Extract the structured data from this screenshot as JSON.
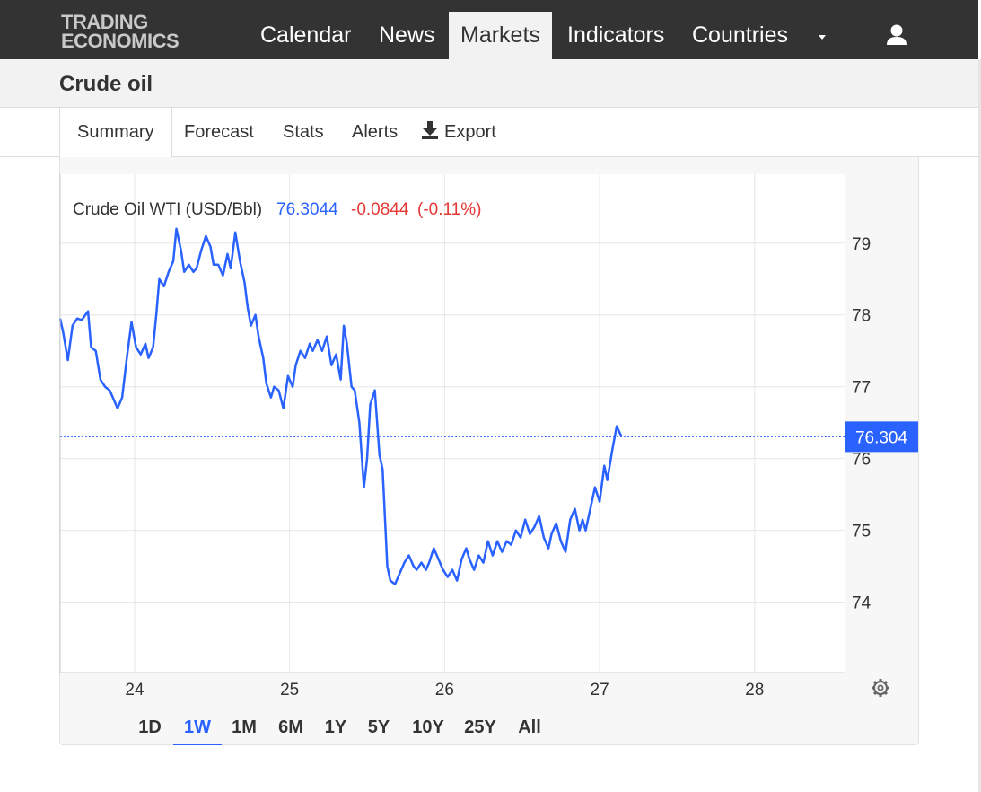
{
  "nav": {
    "logo_line1": "TRADING",
    "logo_line2": "ECONOMICS",
    "items": [
      {
        "label": "Calendar",
        "active": false
      },
      {
        "label": "News",
        "active": false
      },
      {
        "label": "Markets",
        "active": true
      },
      {
        "label": "Indicators",
        "active": false
      },
      {
        "label": "Countries",
        "active": false
      }
    ],
    "dropdown_icon": "caret-down-icon",
    "user_icon": "user-icon"
  },
  "page": {
    "title": "Crude oil"
  },
  "tabs": [
    {
      "label": "Summary",
      "active": true
    },
    {
      "label": "Forecast",
      "active": false
    },
    {
      "label": "Stats",
      "active": false
    },
    {
      "label": "Alerts",
      "active": false
    },
    {
      "label": "Export",
      "active": false,
      "icon": "download-icon"
    }
  ],
  "chart_data": {
    "type": "line",
    "legend": {
      "name": "Crude Oil WTI (USD/Bbl)",
      "value": "76.3044",
      "change": "-0.0844",
      "change_pct": "(-0.11%)"
    },
    "last_value_label": "76.304",
    "last_value": 76.304,
    "x_ticks": [
      "24",
      "25",
      "26",
      "27",
      "28"
    ],
    "y_ticks": [
      "74",
      "75",
      "76",
      "77",
      "78",
      "79"
    ],
    "ylim": [
      73.02,
      79.96
    ],
    "xlim": [
      23.52,
      28.58
    ],
    "grid": true,
    "colors": {
      "line": "#2962ff",
      "positive": "#2962ff",
      "negative": "#e53935",
      "grid": "#e6e6e6"
    },
    "series": [
      {
        "values": [
          [
            23.52,
            77.95
          ],
          [
            23.54,
            77.75
          ],
          [
            23.57,
            77.37
          ],
          [
            23.6,
            77.85
          ],
          [
            23.63,
            77.95
          ],
          [
            23.66,
            77.93
          ],
          [
            23.7,
            78.05
          ],
          [
            23.72,
            77.55
          ],
          [
            23.75,
            77.5
          ],
          [
            23.78,
            77.1
          ],
          [
            23.81,
            77.0
          ],
          [
            23.84,
            76.95
          ],
          [
            23.87,
            76.8
          ],
          [
            23.89,
            76.7
          ],
          [
            23.92,
            76.85
          ],
          [
            23.95,
            77.4
          ],
          [
            23.98,
            77.9
          ],
          [
            24.01,
            77.55
          ],
          [
            24.04,
            77.45
          ],
          [
            24.07,
            77.6
          ],
          [
            24.09,
            77.4
          ],
          [
            24.12,
            77.55
          ],
          [
            24.14,
            78.0
          ],
          [
            24.16,
            78.5
          ],
          [
            24.19,
            78.4
          ],
          [
            24.22,
            78.6
          ],
          [
            24.25,
            78.75
          ],
          [
            24.27,
            79.2
          ],
          [
            24.3,
            78.9
          ],
          [
            24.32,
            78.6
          ],
          [
            24.35,
            78.7
          ],
          [
            24.38,
            78.6
          ],
          [
            24.4,
            78.65
          ],
          [
            24.43,
            78.9
          ],
          [
            24.46,
            79.1
          ],
          [
            24.49,
            78.95
          ],
          [
            24.51,
            78.7
          ],
          [
            24.54,
            78.7
          ],
          [
            24.57,
            78.55
          ],
          [
            24.6,
            78.85
          ],
          [
            24.62,
            78.65
          ],
          [
            24.65,
            79.15
          ],
          [
            24.68,
            78.75
          ],
          [
            24.71,
            78.45
          ],
          [
            24.73,
            78.1
          ],
          [
            24.75,
            77.85
          ],
          [
            24.78,
            78.0
          ],
          [
            24.8,
            77.7
          ],
          [
            24.83,
            77.4
          ],
          [
            24.85,
            77.05
          ],
          [
            24.88,
            76.85
          ],
          [
            24.9,
            77.0
          ],
          [
            24.93,
            76.95
          ],
          [
            24.96,
            76.7
          ],
          [
            24.99,
            77.15
          ],
          [
            25.02,
            77.0
          ],
          [
            25.04,
            77.3
          ],
          [
            25.07,
            77.5
          ],
          [
            25.1,
            77.4
          ],
          [
            25.13,
            77.6
          ],
          [
            25.15,
            77.5
          ],
          [
            25.18,
            77.65
          ],
          [
            25.21,
            77.5
          ],
          [
            25.24,
            77.7
          ],
          [
            25.27,
            77.3
          ],
          [
            25.3,
            77.45
          ],
          [
            25.33,
            77.1
          ],
          [
            25.35,
            77.85
          ],
          [
            25.37,
            77.6
          ],
          [
            25.4,
            77.0
          ],
          [
            25.42,
            76.95
          ],
          [
            25.45,
            76.5
          ],
          [
            25.48,
            75.6
          ],
          [
            25.5,
            76.0
          ],
          [
            25.52,
            76.75
          ],
          [
            25.55,
            76.95
          ],
          [
            25.58,
            76.05
          ],
          [
            25.6,
            75.85
          ],
          [
            25.63,
            74.5
          ],
          [
            25.65,
            74.3
          ],
          [
            25.68,
            74.25
          ],
          [
            25.71,
            74.4
          ],
          [
            25.74,
            74.55
          ],
          [
            25.77,
            74.65
          ],
          [
            25.8,
            74.5
          ],
          [
            25.82,
            74.45
          ],
          [
            25.85,
            74.55
          ],
          [
            25.88,
            74.45
          ],
          [
            25.9,
            74.55
          ],
          [
            25.93,
            74.75
          ],
          [
            25.96,
            74.6
          ],
          [
            25.99,
            74.45
          ],
          [
            26.02,
            74.35
          ],
          [
            26.05,
            74.45
          ],
          [
            26.08,
            74.3
          ],
          [
            26.11,
            74.6
          ],
          [
            26.14,
            74.75
          ],
          [
            26.16,
            74.6
          ],
          [
            26.19,
            74.45
          ],
          [
            26.22,
            74.65
          ],
          [
            26.25,
            74.55
          ],
          [
            26.28,
            74.85
          ],
          [
            26.31,
            74.65
          ],
          [
            26.34,
            74.85
          ],
          [
            26.37,
            74.7
          ],
          [
            26.4,
            74.85
          ],
          [
            26.43,
            74.8
          ],
          [
            26.46,
            75.0
          ],
          [
            26.49,
            74.9
          ],
          [
            26.52,
            75.15
          ],
          [
            26.55,
            74.95
          ],
          [
            26.58,
            75.05
          ],
          [
            26.61,
            75.2
          ],
          [
            26.64,
            74.9
          ],
          [
            26.67,
            74.75
          ],
          [
            26.69,
            74.95
          ],
          [
            26.72,
            75.1
          ],
          [
            26.75,
            74.85
          ],
          [
            26.78,
            74.7
          ],
          [
            26.81,
            75.15
          ],
          [
            26.84,
            75.3
          ],
          [
            26.87,
            75.0
          ],
          [
            26.89,
            75.15
          ],
          [
            26.91,
            75.0
          ],
          [
            26.94,
            75.3
          ],
          [
            26.97,
            75.6
          ],
          [
            27.0,
            75.4
          ],
          [
            27.03,
            75.9
          ],
          [
            27.05,
            75.7
          ],
          [
            27.08,
            76.1
          ],
          [
            27.11,
            76.45
          ],
          [
            27.14,
            76.31
          ]
        ]
      }
    ]
  },
  "settings_icon": "gear-icon",
  "ranges": [
    {
      "label": "1D",
      "active": false
    },
    {
      "label": "1W",
      "active": true
    },
    {
      "label": "1M",
      "active": false
    },
    {
      "label": "6M",
      "active": false
    },
    {
      "label": "1Y",
      "active": false
    },
    {
      "label": "5Y",
      "active": false
    },
    {
      "label": "10Y",
      "active": false
    },
    {
      "label": "25Y",
      "active": false
    },
    {
      "label": "All",
      "active": false
    }
  ]
}
